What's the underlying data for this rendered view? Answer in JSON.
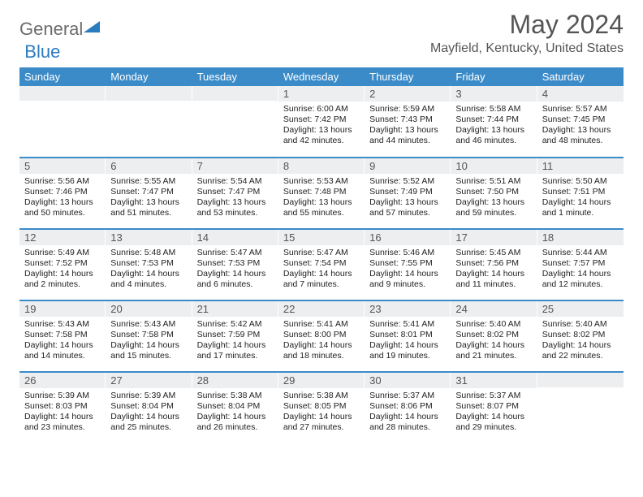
{
  "logo": {
    "text1": "General",
    "text2": "Blue"
  },
  "title": {
    "month": "May 2024",
    "location": "Mayfield, Kentucky, United States"
  },
  "colors": {
    "header_bg": "#3b8bc9",
    "daynum_bg": "#eceef0",
    "rule": "#3b8bc9"
  },
  "weekdays": [
    "Sunday",
    "Monday",
    "Tuesday",
    "Wednesday",
    "Thursday",
    "Friday",
    "Saturday"
  ],
  "weeks": [
    [
      {
        "n": "",
        "sr": "",
        "ss": "",
        "dl": ""
      },
      {
        "n": "",
        "sr": "",
        "ss": "",
        "dl": ""
      },
      {
        "n": "",
        "sr": "",
        "ss": "",
        "dl": ""
      },
      {
        "n": "1",
        "sr": "Sunrise: 6:00 AM",
        "ss": "Sunset: 7:42 PM",
        "dl": "Daylight: 13 hours and 42 minutes."
      },
      {
        "n": "2",
        "sr": "Sunrise: 5:59 AM",
        "ss": "Sunset: 7:43 PM",
        "dl": "Daylight: 13 hours and 44 minutes."
      },
      {
        "n": "3",
        "sr": "Sunrise: 5:58 AM",
        "ss": "Sunset: 7:44 PM",
        "dl": "Daylight: 13 hours and 46 minutes."
      },
      {
        "n": "4",
        "sr": "Sunrise: 5:57 AM",
        "ss": "Sunset: 7:45 PM",
        "dl": "Daylight: 13 hours and 48 minutes."
      }
    ],
    [
      {
        "n": "5",
        "sr": "Sunrise: 5:56 AM",
        "ss": "Sunset: 7:46 PM",
        "dl": "Daylight: 13 hours and 50 minutes."
      },
      {
        "n": "6",
        "sr": "Sunrise: 5:55 AM",
        "ss": "Sunset: 7:47 PM",
        "dl": "Daylight: 13 hours and 51 minutes."
      },
      {
        "n": "7",
        "sr": "Sunrise: 5:54 AM",
        "ss": "Sunset: 7:47 PM",
        "dl": "Daylight: 13 hours and 53 minutes."
      },
      {
        "n": "8",
        "sr": "Sunrise: 5:53 AM",
        "ss": "Sunset: 7:48 PM",
        "dl": "Daylight: 13 hours and 55 minutes."
      },
      {
        "n": "9",
        "sr": "Sunrise: 5:52 AM",
        "ss": "Sunset: 7:49 PM",
        "dl": "Daylight: 13 hours and 57 minutes."
      },
      {
        "n": "10",
        "sr": "Sunrise: 5:51 AM",
        "ss": "Sunset: 7:50 PM",
        "dl": "Daylight: 13 hours and 59 minutes."
      },
      {
        "n": "11",
        "sr": "Sunrise: 5:50 AM",
        "ss": "Sunset: 7:51 PM",
        "dl": "Daylight: 14 hours and 1 minute."
      }
    ],
    [
      {
        "n": "12",
        "sr": "Sunrise: 5:49 AM",
        "ss": "Sunset: 7:52 PM",
        "dl": "Daylight: 14 hours and 2 minutes."
      },
      {
        "n": "13",
        "sr": "Sunrise: 5:48 AM",
        "ss": "Sunset: 7:53 PM",
        "dl": "Daylight: 14 hours and 4 minutes."
      },
      {
        "n": "14",
        "sr": "Sunrise: 5:47 AM",
        "ss": "Sunset: 7:53 PM",
        "dl": "Daylight: 14 hours and 6 minutes."
      },
      {
        "n": "15",
        "sr": "Sunrise: 5:47 AM",
        "ss": "Sunset: 7:54 PM",
        "dl": "Daylight: 14 hours and 7 minutes."
      },
      {
        "n": "16",
        "sr": "Sunrise: 5:46 AM",
        "ss": "Sunset: 7:55 PM",
        "dl": "Daylight: 14 hours and 9 minutes."
      },
      {
        "n": "17",
        "sr": "Sunrise: 5:45 AM",
        "ss": "Sunset: 7:56 PM",
        "dl": "Daylight: 14 hours and 11 minutes."
      },
      {
        "n": "18",
        "sr": "Sunrise: 5:44 AM",
        "ss": "Sunset: 7:57 PM",
        "dl": "Daylight: 14 hours and 12 minutes."
      }
    ],
    [
      {
        "n": "19",
        "sr": "Sunrise: 5:43 AM",
        "ss": "Sunset: 7:58 PM",
        "dl": "Daylight: 14 hours and 14 minutes."
      },
      {
        "n": "20",
        "sr": "Sunrise: 5:43 AM",
        "ss": "Sunset: 7:58 PM",
        "dl": "Daylight: 14 hours and 15 minutes."
      },
      {
        "n": "21",
        "sr": "Sunrise: 5:42 AM",
        "ss": "Sunset: 7:59 PM",
        "dl": "Daylight: 14 hours and 17 minutes."
      },
      {
        "n": "22",
        "sr": "Sunrise: 5:41 AM",
        "ss": "Sunset: 8:00 PM",
        "dl": "Daylight: 14 hours and 18 minutes."
      },
      {
        "n": "23",
        "sr": "Sunrise: 5:41 AM",
        "ss": "Sunset: 8:01 PM",
        "dl": "Daylight: 14 hours and 19 minutes."
      },
      {
        "n": "24",
        "sr": "Sunrise: 5:40 AM",
        "ss": "Sunset: 8:02 PM",
        "dl": "Daylight: 14 hours and 21 minutes."
      },
      {
        "n": "25",
        "sr": "Sunrise: 5:40 AM",
        "ss": "Sunset: 8:02 PM",
        "dl": "Daylight: 14 hours and 22 minutes."
      }
    ],
    [
      {
        "n": "26",
        "sr": "Sunrise: 5:39 AM",
        "ss": "Sunset: 8:03 PM",
        "dl": "Daylight: 14 hours and 23 minutes."
      },
      {
        "n": "27",
        "sr": "Sunrise: 5:39 AM",
        "ss": "Sunset: 8:04 PM",
        "dl": "Daylight: 14 hours and 25 minutes."
      },
      {
        "n": "28",
        "sr": "Sunrise: 5:38 AM",
        "ss": "Sunset: 8:04 PM",
        "dl": "Daylight: 14 hours and 26 minutes."
      },
      {
        "n": "29",
        "sr": "Sunrise: 5:38 AM",
        "ss": "Sunset: 8:05 PM",
        "dl": "Daylight: 14 hours and 27 minutes."
      },
      {
        "n": "30",
        "sr": "Sunrise: 5:37 AM",
        "ss": "Sunset: 8:06 PM",
        "dl": "Daylight: 14 hours and 28 minutes."
      },
      {
        "n": "31",
        "sr": "Sunrise: 5:37 AM",
        "ss": "Sunset: 8:07 PM",
        "dl": "Daylight: 14 hours and 29 minutes."
      },
      {
        "n": "",
        "sr": "",
        "ss": "",
        "dl": ""
      }
    ]
  ]
}
